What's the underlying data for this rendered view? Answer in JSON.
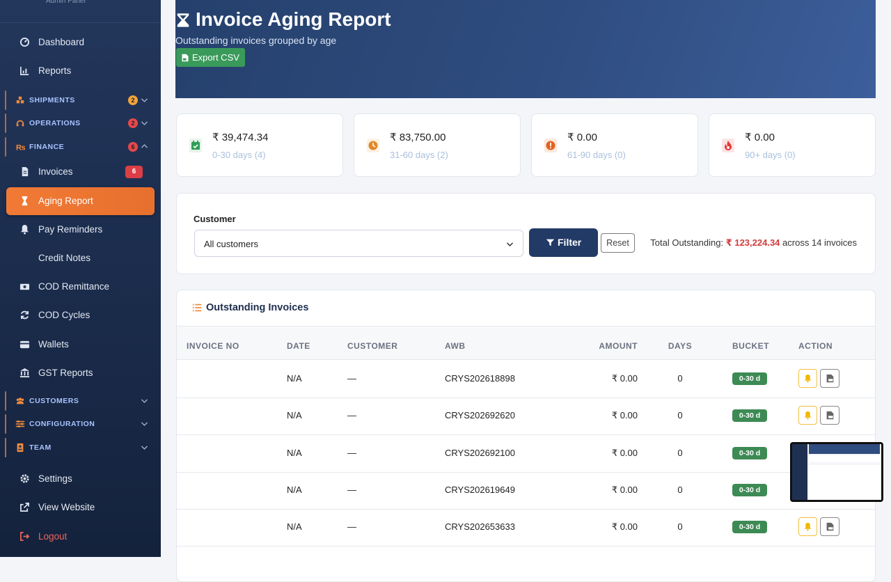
{
  "sidebar": {
    "brand": "Admin Panel",
    "nav": [
      {
        "label": "Dashboard"
      },
      {
        "label": "Reports"
      },
      {
        "section": "SHIPMENTS",
        "badge": 2,
        "badge_color": "#f0a33a"
      },
      {
        "section": "OPERATIONS",
        "badge": 2,
        "badge_color": "#e5484d"
      },
      {
        "section": "FINANCE",
        "badge": 6,
        "badge_color": "#e5484d",
        "expanded": true
      },
      {
        "label": "Invoices",
        "badge": 6
      },
      {
        "label": "Aging Report",
        "active": true
      },
      {
        "label": "Pay Reminders"
      },
      {
        "label": "Credit Notes"
      },
      {
        "label": "COD Remittance"
      },
      {
        "label": "COD Cycles"
      },
      {
        "label": "Wallets"
      },
      {
        "label": "GST Reports"
      },
      {
        "section": "CUSTOMERS"
      },
      {
        "section": "CONFIGURATION"
      },
      {
        "section": "TEAM"
      },
      {
        "label": "Settings"
      },
      {
        "label": "View Website"
      },
      {
        "label": "Logout",
        "color": "#f0645a"
      }
    ]
  },
  "header": {
    "title": "Invoice Aging Report",
    "subtitle": "Outstanding invoices grouped by age",
    "export": "Export CSV"
  },
  "cards": [
    {
      "amount": "₹ 39,474.34",
      "label": "0-30 days (4)"
    },
    {
      "amount": "₹ 83,750.00",
      "label": "31-60 days (2)"
    },
    {
      "amount": "₹ 0.00",
      "label": "61-90 days (0)"
    },
    {
      "amount": "₹ 0.00",
      "label": "90+ days (0)"
    }
  ],
  "filter": {
    "label": "Customer",
    "select": "All customers",
    "button": "Filter",
    "reset": "Reset",
    "total_label": "Total Outstanding:",
    "total_value": "₹ 123,224.34",
    "total_suffix": "across 14 invoices"
  },
  "table": {
    "title": "Outstanding Invoices",
    "columns": [
      "INVOICE NO",
      "DATE",
      "CUSTOMER",
      "AWB",
      "AMOUNT",
      "DAYS",
      "BUCKET",
      "ACTION"
    ],
    "rows": [
      {
        "date": "N/A",
        "customer": "—",
        "awb": "CRYS202618898",
        "amount": "₹ 0.00",
        "days": 0,
        "bucket": "0-30 d"
      },
      {
        "date": "N/A",
        "customer": "—",
        "awb": "CRYS202692620",
        "amount": "₹ 0.00",
        "days": 0,
        "bucket": "0-30 d"
      },
      {
        "date": "N/A",
        "customer": "—",
        "awb": "CRYS202692100",
        "amount": "₹ 0.00",
        "days": 0,
        "bucket": "0-30 d"
      },
      {
        "date": "N/A",
        "customer": "—",
        "awb": "CRYS202619649",
        "amount": "₹ 0.00",
        "days": 0,
        "bucket": "0-30 d"
      },
      {
        "date": "N/A",
        "customer": "—",
        "awb": "CRYS202653633",
        "amount": "₹ 0.00",
        "days": 0,
        "bucket": "0-30 d"
      }
    ]
  }
}
